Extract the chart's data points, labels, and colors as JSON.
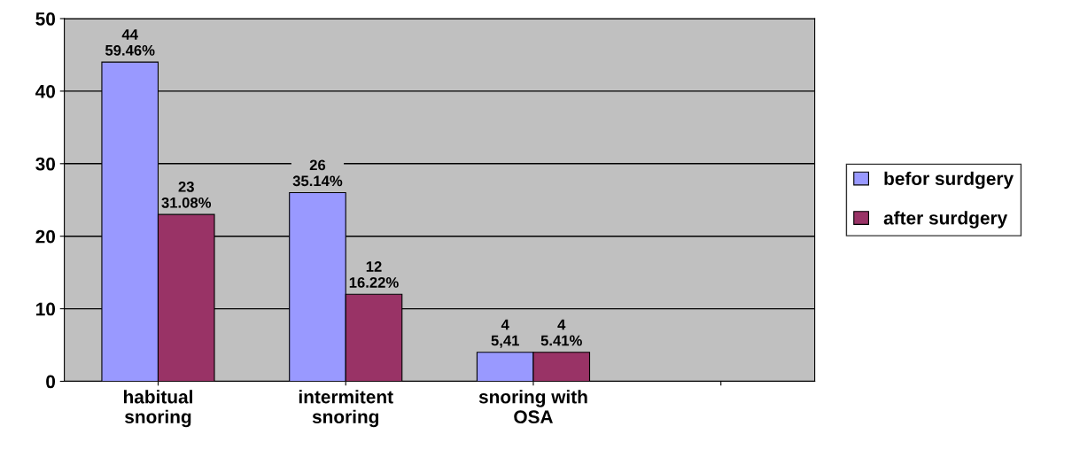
{
  "chart_data": {
    "type": "bar",
    "categories": [
      "habitual\nsnoring",
      "intermitent\nsnoring",
      "snoring with\nOSA",
      null
    ],
    "series": [
      {
        "name": "befor surdgery",
        "color": "#9999ff",
        "values": [
          44,
          26,
          4,
          null
        ],
        "value_labels": [
          "44\n59.46%",
          "26\n35.14%",
          "4\n5,41",
          null
        ]
      },
      {
        "name": "after surdgery",
        "color": "#993366",
        "values": [
          23,
          12,
          4,
          null
        ],
        "value_labels": [
          "23\n31.08%",
          "12\n16.22%",
          "4\n5.41%",
          null
        ]
      }
    ],
    "ylim": [
      0,
      50
    ],
    "yticks": [
      0,
      10,
      20,
      30,
      40,
      50
    ],
    "grid": "y",
    "legend": "right"
  }
}
